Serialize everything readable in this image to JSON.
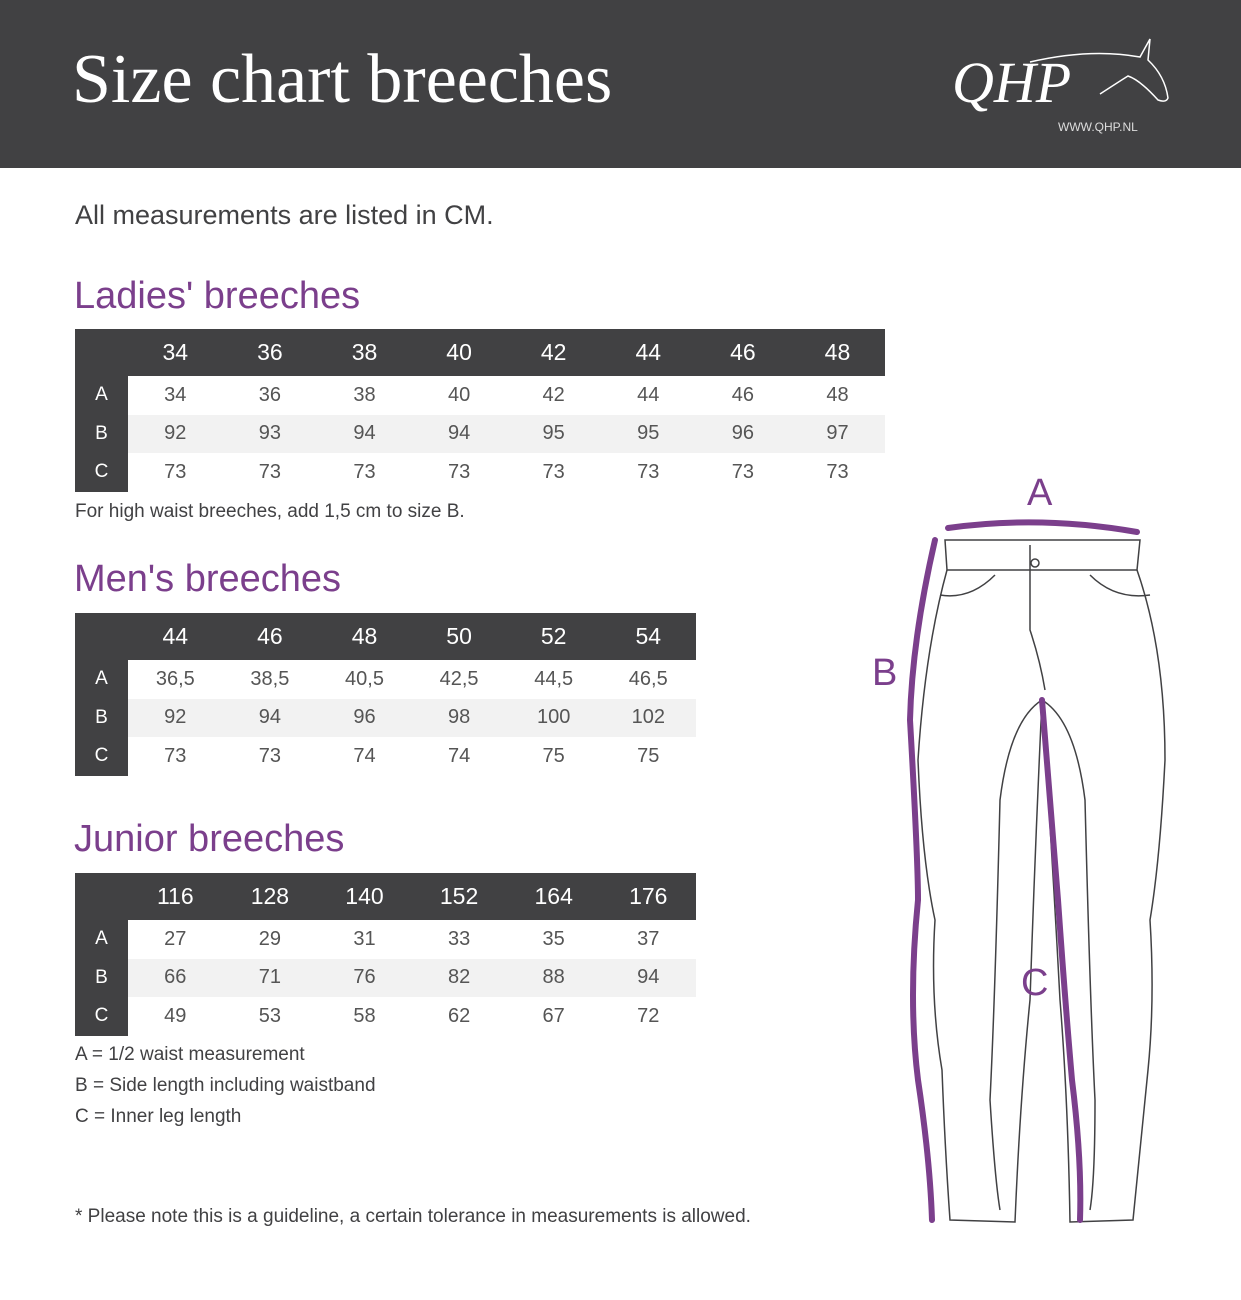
{
  "header": {
    "title": "Size chart breeches",
    "logo_text": "QHP",
    "logo_url": "WWW.QHP.NL"
  },
  "intro": "All measurements are listed in CM.",
  "colors": {
    "header_bg": "#414143",
    "accent_purple": "#7b3f8c",
    "alt_row": "#f2f2f2"
  },
  "tables": [
    {
      "title": "Ladies' breeches",
      "sizes": [
        "34",
        "36",
        "38",
        "40",
        "42",
        "44",
        "46",
        "48"
      ],
      "rows": [
        {
          "label": "A",
          "values": [
            "34",
            "36",
            "38",
            "40",
            "42",
            "44",
            "46",
            "48"
          ]
        },
        {
          "label": "B",
          "values": [
            "92",
            "93",
            "94",
            "94",
            "95",
            "95",
            "96",
            "97"
          ]
        },
        {
          "label": "C",
          "values": [
            "73",
            "73",
            "73",
            "73",
            "73",
            "73",
            "73",
            "73"
          ]
        }
      ],
      "note": "For high waist breeches, add 1,5 cm to size B."
    },
    {
      "title": "Men's breeches",
      "sizes": [
        "44",
        "46",
        "48",
        "50",
        "52",
        "54"
      ],
      "rows": [
        {
          "label": "A",
          "values": [
            "36,5",
            "38,5",
            "40,5",
            "42,5",
            "44,5",
            "46,5"
          ]
        },
        {
          "label": "B",
          "values": [
            "92",
            "94",
            "96",
            "98",
            "100",
            "102"
          ]
        },
        {
          "label": "C",
          "values": [
            "73",
            "73",
            "74",
            "74",
            "75",
            "75"
          ]
        }
      ]
    },
    {
      "title": "Junior breeches",
      "sizes": [
        "116",
        "128",
        "140",
        "152",
        "164",
        "176"
      ],
      "rows": [
        {
          "label": "A",
          "values": [
            "27",
            "29",
            "31",
            "33",
            "35",
            "37"
          ]
        },
        {
          "label": "B",
          "values": [
            "66",
            "71",
            "76",
            "82",
            "88",
            "94"
          ]
        },
        {
          "label": "C",
          "values": [
            "49",
            "53",
            "58",
            "62",
            "67",
            "72"
          ]
        }
      ]
    }
  ],
  "legend": [
    "A = 1/2 waist measurement",
    "B = Side length including waistband",
    "C = Inner leg length"
  ],
  "footnote": "* Please note this is a guideline, a certain tolerance in measurements is allowed.",
  "diagram": {
    "label_a": "A",
    "label_b": "B",
    "label_c": "C"
  }
}
